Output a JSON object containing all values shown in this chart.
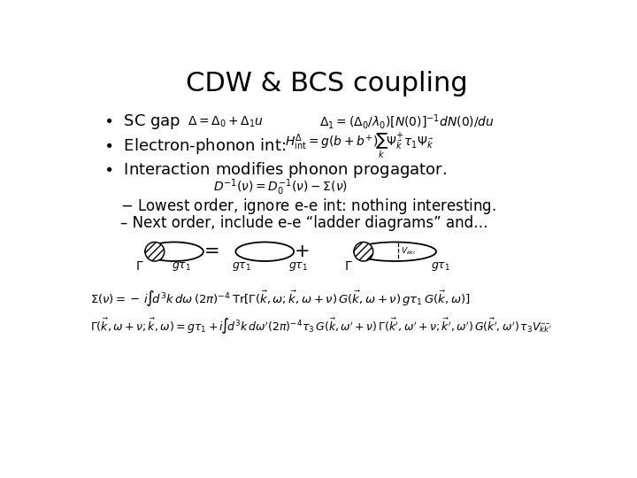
{
  "title": "CDW & BCS coupling",
  "background": "#ffffff",
  "title_fontsize": 22,
  "bullet_fontsize": 13,
  "formula_fontsize": 10,
  "sub_fontsize": 12,
  "small_fontsize": 9
}
